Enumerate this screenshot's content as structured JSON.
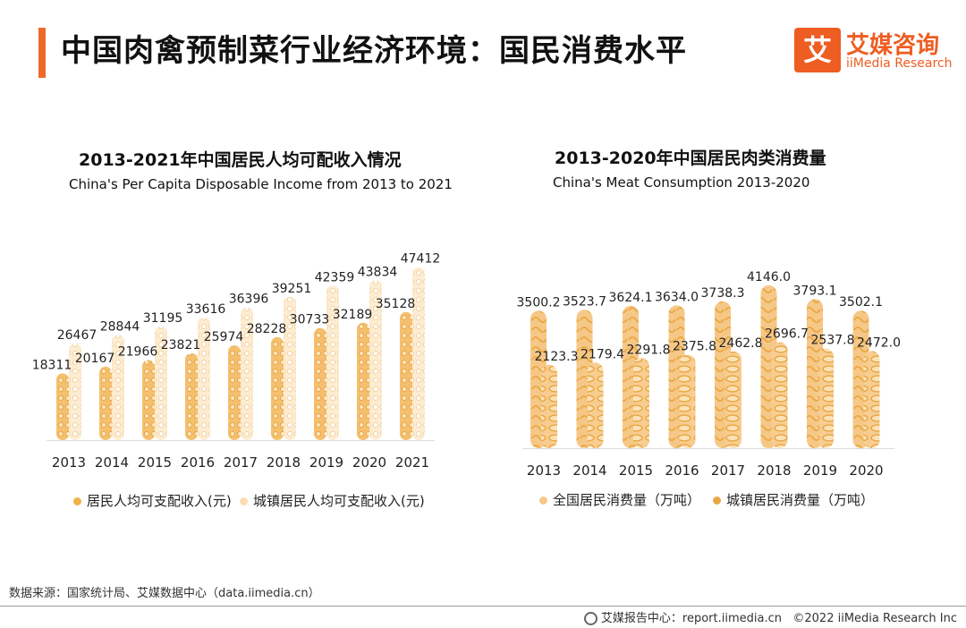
{
  "page": {
    "title": "中国肉禽预制菜行业经济环境：国民消费水平",
    "logo_mark": "艾",
    "logo_cn": "艾媒咨询",
    "logo_en": "iiMedia Research",
    "source": "数据来源：国家统计局、艾媒数据中心（data.iimedia.cn）",
    "footer_left": "艾媒报告中心：report.iimedia.cn",
    "footer_right": "©2022  iiMedia Research  Inc"
  },
  "colors": {
    "accent": "#ee5d22",
    "series_dark": "#f1b24a",
    "series_light": "#f9ddb0"
  },
  "chart_data": [
    {
      "type": "bar",
      "title": "2013-2021年中国居民人均可配收入情况",
      "subtitle": "China's Per Capita Disposable Income from 2013 to 2021",
      "categories": [
        "2013",
        "2014",
        "2015",
        "2016",
        "2017",
        "2018",
        "2019",
        "2020",
        "2021"
      ],
      "series": [
        {
          "name": "居民人均可支配收入(元)",
          "values": [
            18311,
            20167,
            21966,
            23821,
            25974,
            28228,
            30733,
            32189,
            35128
          ]
        },
        {
          "name": "城镇居民人均可支配收入(元)",
          "values": [
            26467,
            28844,
            31195,
            33616,
            36396,
            39251,
            42359,
            43834,
            47412
          ]
        }
      ],
      "ylim": [
        0,
        52000
      ],
      "legend": "bottom",
      "grid": false
    },
    {
      "type": "bar",
      "title": "2013-2020年中国居民肉类消费量",
      "subtitle": "China's Meat Consumption 2013-2020",
      "categories": [
        "2013",
        "2014",
        "2015",
        "2016",
        "2017",
        "2018",
        "2019",
        "2020"
      ],
      "series": [
        {
          "name": "全国居民消费量（万吨）",
          "values": [
            3500.2,
            3523.7,
            3624.1,
            3634.0,
            3738.3,
            4146.0,
            3793.1,
            3502.1
          ]
        },
        {
          "name": "城镇居民消费量（万吨）",
          "values": [
            2123.3,
            2179.4,
            2291.8,
            2375.8,
            2462.8,
            2696.7,
            2537.8,
            2472.0
          ]
        }
      ],
      "ylim": [
        0,
        4600
      ],
      "legend": "bottom",
      "grid": false
    }
  ]
}
